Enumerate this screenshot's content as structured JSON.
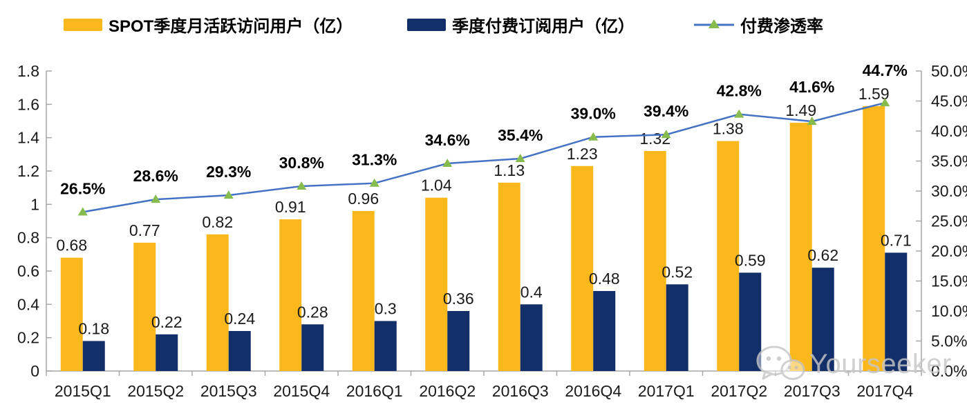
{
  "legend": {
    "items": [
      {
        "label": "SPOT季度月活跃访问用户（亿）",
        "swatch": "bar",
        "color": "#FBB81D"
      },
      {
        "label": "季度付费订阅用户（亿）",
        "swatch": "bar",
        "color": "#132F6A"
      },
      {
        "label": "付费渗透率",
        "swatch": "line",
        "color": "#4472C4",
        "marker_color": "#86BB4D"
      }
    ]
  },
  "watermark": {
    "text": "Yourseeker",
    "icon": "wechat-icon"
  },
  "colors": {
    "bar_mau": "#FBB81D",
    "bar_subs": "#132F6A",
    "line": "#4472C4",
    "marker": "#86BB4D",
    "axis": "#A6A6A6",
    "text": "#1A1A1A",
    "watermark": "#C6C6C6"
  },
  "chart_data": {
    "type": "bar",
    "subtype": "combo-bar-line",
    "categories": [
      "2015Q1",
      "2015Q2",
      "2015Q3",
      "2015Q4",
      "2016Q1",
      "2016Q2",
      "2016Q3",
      "2016Q4",
      "2017Q1",
      "2017Q2",
      "2017Q3",
      "2017Q4"
    ],
    "series": [
      {
        "name": "SPOT季度月活跃访问用户（亿）",
        "type": "bar",
        "axis": "left",
        "color": "#FBB81D",
        "values": [
          0.68,
          0.77,
          0.82,
          0.91,
          0.96,
          1.04,
          1.13,
          1.23,
          1.32,
          1.38,
          1.49,
          1.59
        ],
        "labels": [
          "0.68",
          "0.77",
          "0.82",
          "0.91",
          "0.96",
          "1.04",
          "1.13",
          "1.23",
          "1.32",
          "1.38",
          "1.49",
          "1.59"
        ]
      },
      {
        "name": "季度付费订阅用户（亿）",
        "type": "bar",
        "axis": "left",
        "color": "#132F6A",
        "values": [
          0.18,
          0.22,
          0.24,
          0.28,
          0.3,
          0.36,
          0.4,
          0.48,
          0.52,
          0.59,
          0.62,
          0.71
        ],
        "labels": [
          "0.18",
          "0.22",
          "0.24",
          "0.28",
          "0.3",
          "0.36",
          "0.4",
          "0.48",
          "0.52",
          "0.59",
          "0.62",
          "0.71"
        ]
      },
      {
        "name": "付费渗透率",
        "type": "line",
        "axis": "right",
        "color": "#4472C4",
        "marker": "triangle",
        "marker_color": "#86BB4D",
        "values": [
          26.5,
          28.6,
          29.3,
          30.8,
          31.3,
          34.6,
          35.4,
          39.0,
          39.4,
          42.8,
          41.6,
          44.7
        ],
        "labels": [
          "26.5%",
          "28.6%",
          "29.3%",
          "30.8%",
          "31.3%",
          "34.6%",
          "35.4%",
          "39.0%",
          "39.4%",
          "42.8%",
          "41.6%",
          "44.7%"
        ]
      }
    ],
    "left_axis": {
      "min": 0,
      "max": 1.8,
      "step": 0.2,
      "tick_labels": [
        "0",
        "0.2",
        "0.4",
        "0.6",
        "0.8",
        "1",
        "1.2",
        "1.4",
        "1.6",
        "1.8"
      ]
    },
    "right_axis": {
      "min": 0,
      "max": 50,
      "step": 5,
      "tick_labels": [
        "0.0%",
        "5.0%",
        "10.0%",
        "15.0%",
        "20.0%",
        "25.0%",
        "30.0%",
        "35.0%",
        "40.0%",
        "45.0%",
        "50.0%"
      ]
    },
    "grid": false,
    "legend_position": "top",
    "title": ""
  }
}
